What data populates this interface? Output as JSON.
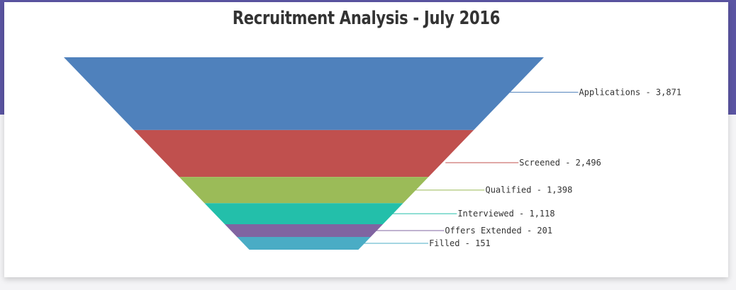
{
  "title": "Recruitment Analysis - July 2016",
  "chart_data": {
    "type": "funnel",
    "title": "Recruitment Analysis - July 2016",
    "categories": [
      "Applications",
      "Screened",
      "Qualified",
      "Interviewed",
      "Offers Extended",
      "Filled"
    ],
    "values": [
      3871,
      2496,
      1398,
      1118,
      201,
      151
    ],
    "labels": [
      "Applications - 3,871",
      "Screened - 2,496",
      "Qualified - 1,398",
      "Interviewed - 1,118",
      "Offers Extended - 201",
      "Filled - 151"
    ],
    "colors": [
      "#4f81bc",
      "#c0504e",
      "#9bbb58",
      "#23bfaa",
      "#8064a1",
      "#4aacc5"
    ],
    "legend": "none",
    "label_placement": "right"
  }
}
